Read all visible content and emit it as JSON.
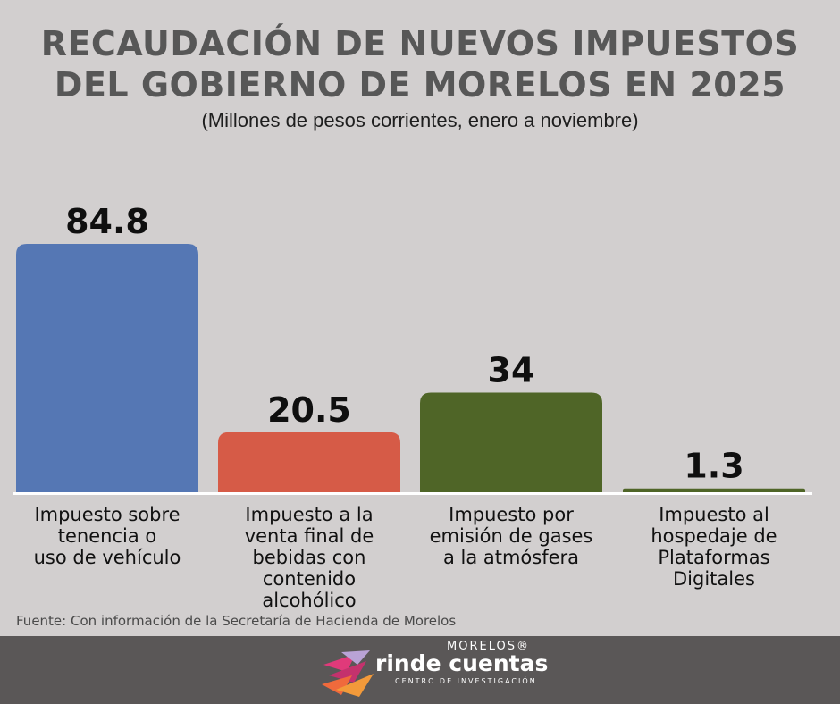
{
  "chart_data": {
    "type": "bar",
    "title": "RECAUDACIÓN DE NUEVOS IMPUESTOS DEL GOBIERNO DE MORELOS EN 2025",
    "title_lines": [
      "RECAUDACIÓN DE NUEVOS IMPUESTOS",
      "DEL GOBIERNO DE MORELOS EN 2025"
    ],
    "subtitle": "(Millones de pesos corrientes, enero a noviembre)",
    "categories": [
      "Impuesto sobre tenencia o uso de vehículo",
      "Impuesto a la venta final de bebidas con contenido alcohólico",
      "Impuesto por emisión de gases a la atmósfera",
      "Impuesto al hospedaje de Plataformas Digitales"
    ],
    "category_lines": [
      [
        "Impuesto sobre",
        "tenencia o",
        "uso de vehículo"
      ],
      [
        "Impuesto a la",
        "venta final de",
        "bebidas con",
        "contenido",
        "alcohólico"
      ],
      [
        "Impuesto por",
        "emisión de gases",
        "a la atmósfera"
      ],
      [
        "Impuesto al",
        "hospedaje de",
        "Plataformas",
        "Digitales"
      ]
    ],
    "values": [
      84.8,
      20.5,
      34,
      1.3
    ],
    "value_labels": [
      "84.8",
      "20.5",
      "34",
      "1.3"
    ],
    "colors": [
      "#5577b4",
      "#d65b47",
      "#4f6527",
      "#4f6527"
    ],
    "xlabel": "",
    "ylabel": "",
    "grid": false,
    "legend": "none"
  },
  "source": "Fuente: Con información de la Secretaría de Hacienda de Morelos",
  "footer": {
    "brand_top": "MORELOS®",
    "brand_main": "rinde cuentas",
    "brand_sub": "CENTRO DE INVESTIGACIÓN"
  }
}
